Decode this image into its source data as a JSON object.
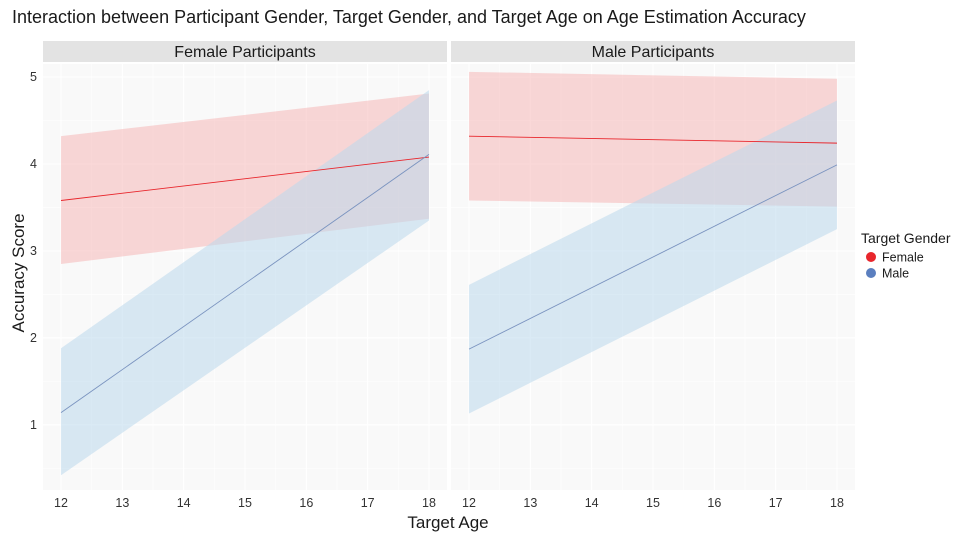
{
  "chart_data": {
    "type": "line",
    "title": "Interaction between Participant Gender, Target Gender, and Target Age on Age Estimation Accuracy",
    "xlabel": "Target Age",
    "ylabel": "Accuracy Score",
    "xlim": [
      12,
      18
    ],
    "ylim": [
      0.25,
      5.15
    ],
    "x_ticks": [
      12,
      13,
      14,
      15,
      16,
      17,
      18
    ],
    "y_ticks": [
      1,
      2,
      3,
      4,
      5
    ],
    "grid": true,
    "legend": {
      "title": "Target Gender",
      "placement": "right",
      "entries": [
        {
          "name": "Female",
          "color": "#e8262c"
        },
        {
          "name": "Male",
          "color": "#5b7fbf"
        }
      ]
    },
    "panels": [
      {
        "name": "Female Participants",
        "series": [
          {
            "name": "Female",
            "x": [
              12,
              18
            ],
            "y": [
              3.58,
              4.08
            ],
            "lower": [
              2.85,
              3.37
            ],
            "upper": [
              4.32,
              4.81
            ],
            "color": "#e8262c",
            "band_color": "#f6b8b8"
          },
          {
            "name": "Male",
            "x": [
              12,
              18
            ],
            "y": [
              1.14,
              4.11
            ],
            "lower": [
              0.42,
              3.35
            ],
            "upper": [
              1.88,
              4.85
            ],
            "color": "#7a93bf",
            "band_color": "#bcd9ec"
          }
        ]
      },
      {
        "name": "Male Participants",
        "series": [
          {
            "name": "Female",
            "x": [
              12,
              18
            ],
            "y": [
              4.32,
              4.24
            ],
            "lower": [
              3.58,
              3.51
            ],
            "upper": [
              5.06,
              4.98
            ],
            "color": "#e8262c",
            "band_color": "#f6b8b8"
          },
          {
            "name": "Male",
            "x": [
              12,
              18
            ],
            "y": [
              1.87,
              3.99
            ],
            "lower": [
              1.13,
              3.25
            ],
            "upper": [
              2.61,
              4.73
            ],
            "color": "#7a93bf",
            "band_color": "#bcd9ec"
          }
        ]
      }
    ]
  }
}
